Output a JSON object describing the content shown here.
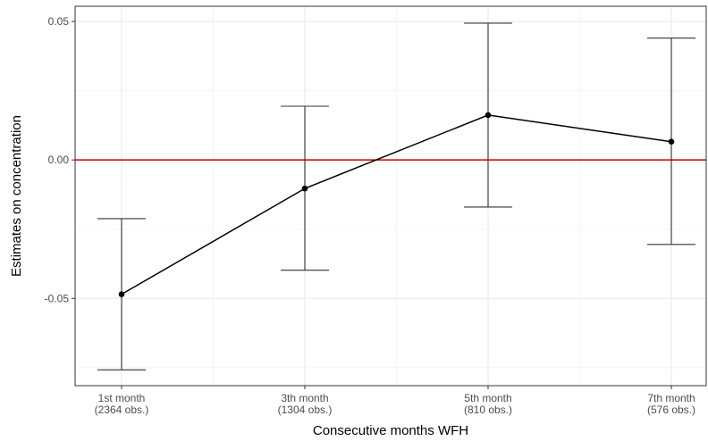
{
  "chart_data": {
    "type": "line",
    "xlabel": "Consecutive months WFH",
    "ylabel": "Estimates on concentration",
    "categories": [
      [
        "1st month",
        "(2364 obs.)"
      ],
      [
        "3th month",
        "(1304 obs.)"
      ],
      [
        "5th month",
        "(810 obs.)"
      ],
      [
        "7th month",
        "(576 obs.)"
      ]
    ],
    "series": [
      {
        "values": [
          -0.0485,
          -0.0103,
          0.0162,
          0.0066
        ],
        "ci_lower": [
          -0.0758,
          -0.0398,
          -0.017,
          -0.0305
        ],
        "ci_upper": [
          -0.0212,
          0.0194,
          0.0494,
          0.044
        ]
      }
    ],
    "yticks": [
      -0.05,
      0.0,
      0.05
    ],
    "ytick_labels": [
      "-0.05",
      "0.00",
      "0.05"
    ],
    "ylim": [
      -0.0815,
      0.0555
    ],
    "reference_line": {
      "y": 0.0,
      "color": "#cc0000"
    },
    "grid": true,
    "colors": {
      "line": "#000000",
      "errorbar": "#333333",
      "grid_major": "#ebebeb",
      "grid_minor": "#f5f5f5",
      "panel_border": "#333333"
    }
  }
}
